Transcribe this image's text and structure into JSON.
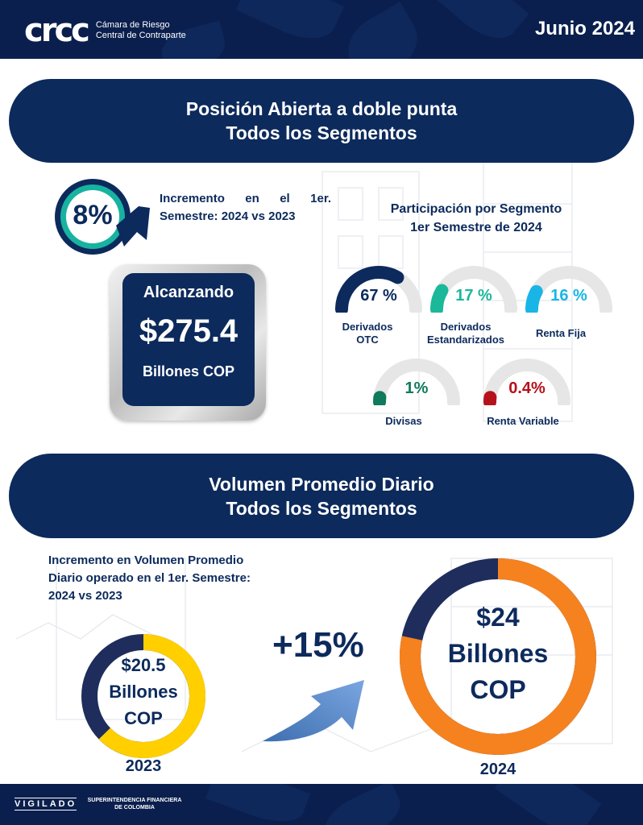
{
  "header": {
    "logo_mark": "crcc",
    "logo_line1": "Cámara de Riesgo",
    "logo_line2": "Central de Contraparte",
    "date": "Junio 2024"
  },
  "section1": {
    "title_line1": "Posición Abierta a doble punta",
    "title_line2": "Todos los Segmentos",
    "increment_badge": "8%",
    "increment_text_line1": "Incremento en el 1er.",
    "increment_text_line2": "Semestre: 2024 vs 2023",
    "total": {
      "label_top": "Alcanzando",
      "value": "$275.4",
      "label_bottom": "Billones COP"
    },
    "participation_title_line1": "Participación por Segmento",
    "participation_title_line2": "1er Semestre de 2024",
    "segments": [
      {
        "value_text": "67 %",
        "value": 67,
        "label_line1": "Derivados",
        "label_line2": "OTC",
        "color": "#0c2a5c"
      },
      {
        "value_text": "17 %",
        "value": 17,
        "label_line1": "Derivados",
        "label_line2": "Estandarizados",
        "color": "#1bb89a"
      },
      {
        "value_text": "16 %",
        "value": 16,
        "label_line1": "Renta Fija",
        "label_line2": "",
        "color": "#19b5e6"
      },
      {
        "value_text": "1%",
        "value": 1,
        "label_line1": "Divisas",
        "label_line2": "",
        "color": "#0f7a5c"
      },
      {
        "value_text": "0.4%",
        "value": 0.4,
        "label_line1": "Renta Variable",
        "label_line2": "",
        "color": "#b5121b"
      }
    ]
  },
  "section2": {
    "title_line1": "Volumen Promedio Diario",
    "title_line2": "Todos los Segmentos",
    "increment_text_line1": "Incremento en Volumen Promedio",
    "increment_text_line2": "Diario operado en el 1er. Semestre:",
    "increment_text_line3": "2024 vs 2023",
    "growth": "+15%",
    "y2023": {
      "value": "$20.5",
      "unit1": "Billones",
      "unit2": "COP",
      "year": "2023",
      "color": "#ffcf00"
    },
    "y2024": {
      "value": "$24",
      "unit1": "Billones",
      "unit2": "COP",
      "year": "2024",
      "color": "#f5821f"
    }
  },
  "footer": {
    "vigilado": "VIGILADO",
    "sfc_line1": "SUPERINTENDENCIA FINANCIERA",
    "sfc_line2": "DE COLOMBIA"
  },
  "colors": {
    "navy": "#0c2a5c",
    "ring_dark": "#1f2d5c",
    "gauge_track": "#e6e6e6"
  }
}
